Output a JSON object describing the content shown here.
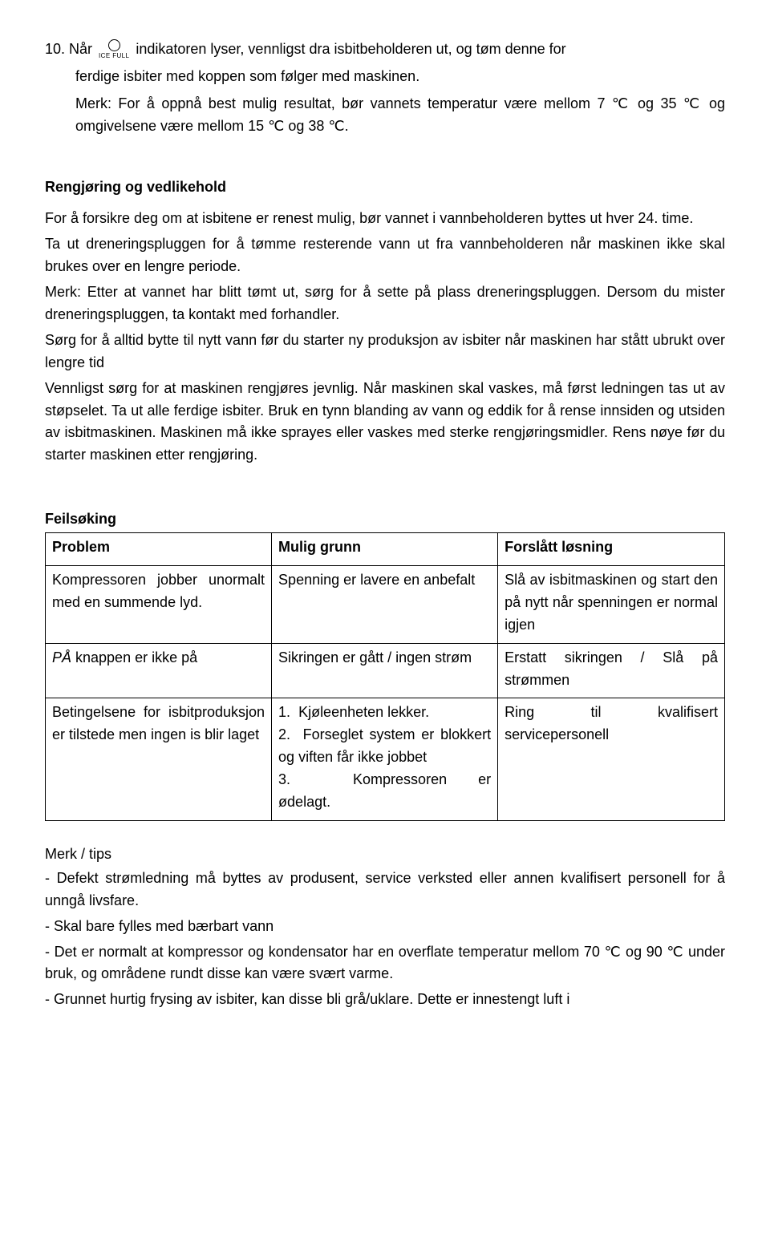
{
  "step10": {
    "prefix": "10. Når",
    "icon_label": "ICE FULL",
    "line1_tail": "indikatoren lyser, vennligst dra isbitbeholderen ut, og tøm denne for",
    "line2": "ferdige isbiter med koppen som følger med maskinen.",
    "note1": "Merk: For å oppnå best mulig resultat, bør vannets temperatur være mellom 7 ℃ og 35 ℃ og omgivelsene være mellom 15 ℃ og 38 ℃."
  },
  "cleaning": {
    "heading": "Rengjøring og vedlikehold",
    "p1": "For å forsikre deg om at isbitene er renest mulig, bør vannet i vannbeholderen byttes ut hver 24. time.",
    "p2": "Ta ut dreneringspluggen for å tømme resterende vann ut fra vannbeholderen når maskinen ikke skal brukes over en lengre periode.",
    "p3": "Merk: Etter at vannet har blitt tømt ut, sørg for å sette på plass dreneringspluggen. Dersom du mister dreneringspluggen, ta kontakt med forhandler.",
    "p4": "Sørg for å alltid bytte til nytt vann før du starter ny produksjon av isbiter når maskinen har stått ubrukt over lengre tid",
    "p5": "Vennligst sørg for at maskinen rengjøres jevnlig. Når maskinen skal vaskes, må først ledningen tas ut av støpselet. Ta ut alle ferdige isbiter. Bruk en tynn blanding av vann og eddik for å rense innsiden og utsiden av isbitmaskinen. Maskinen må ikke sprayes eller vaskes med sterke rengjøringsmidler. Rens nøye før du starter maskinen etter rengjøring."
  },
  "trouble": {
    "heading": "Feilsøking",
    "h1": "Problem",
    "h2": "Mulig grunn",
    "h3": "Forslått løsning",
    "r1c1": "Kompressoren jobber unormalt med en summende lyd.",
    "r1c2": "Spenning er lavere en anbefalt",
    "r1c3": "Slå av isbitmaskinen og start den på nytt når spenningen er normal igjen",
    "r2c1_prefix": "PÅ",
    "r2c1_rest": " knappen er ikke på",
    "r2c2": "Sikringen er gått / ingen strøm",
    "r2c3": "Erstatt sikringen / Slå på strømmen",
    "r3c1": "Betingelsene for isbitproduksjon er tilstede men ingen is blir laget",
    "r3c2_1": "Kjøleenheten lekker.",
    "r3c2_2": "Forseglet system er blokkert og viften får ikke jobbet",
    "r3c2_3a": "Kompressoren",
    "r3c2_3b": "er",
    "r3c2_3c": "ødelagt.",
    "r3c3a": "Ring",
    "r3c3b": "til",
    "r3c3c": "kvalifisert",
    "r3c3d": "servicepersonell"
  },
  "tips": {
    "heading": "Merk / tips",
    "t1": "- Defekt strømledning må byttes av produsent, service verksted eller annen kvalifisert personell for å unngå livsfare.",
    "t2": "- Skal bare fylles med bærbart vann",
    "t3": "- Det er normalt at kompressor og kondensator har en overflate temperatur mellom 70 ℃ og 90 ℃ under bruk, og områdene rundt disse kan være svært varme.",
    "t4": "- Grunnet hurtig frysing av isbiter, kan disse bli grå/uklare. Dette er innestengt luft i"
  }
}
